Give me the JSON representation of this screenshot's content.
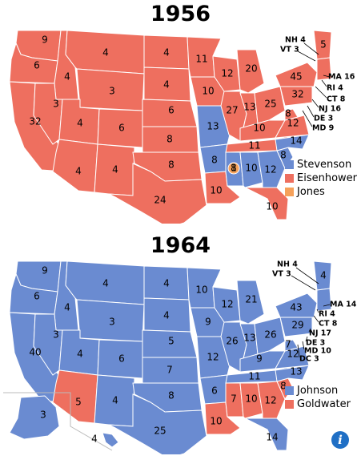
{
  "colors": {
    "dem": "#6a8bd1",
    "rep": "#ee6f5f",
    "other": "#f6a15a",
    "border": "#ffffff",
    "label_line": "#000000"
  },
  "map1956": {
    "title": "1956",
    "legend": [
      {
        "label": "Stevenson",
        "color": "#6a8bd1"
      },
      {
        "label": "Eisenhower",
        "color": "#ee6f5f"
      },
      {
        "label": "Jones",
        "color": "#f6a15a"
      }
    ],
    "states": {
      "WA": "9",
      "OR": "6",
      "CA": "32",
      "ID": "4",
      "NV": "3",
      "MT": "4",
      "WY": "3",
      "UT": "4",
      "AZ": "4",
      "CO": "6",
      "NM": "4",
      "ND": "4",
      "SD": "4",
      "NE": "6",
      "KS": "8",
      "OK": "8",
      "TX": "24",
      "MN": "11",
      "IA": "10",
      "MO": "13",
      "AR": "8",
      "LA": "10",
      "WI": "12",
      "IL": "27",
      "MI": "20",
      "IN": "13",
      "OH": "25",
      "KY": "10",
      "TN": "11",
      "MS": "8",
      "AL": "10",
      "AL_JONES": "1",
      "GA": "12",
      "FL": "10",
      "SC": "8",
      "NC": "14",
      "VA": "12",
      "WV": "8",
      "PA": "32",
      "NY": "45",
      "ME": "5",
      "NH": "NH 4",
      "VT": "VT 3",
      "MA": "MA 16",
      "RI": "RI 4",
      "CT": "CT 8",
      "NJ": "NJ 16",
      "DE": "DE 3",
      "MD": "MD 9"
    }
  },
  "map1964": {
    "title": "1964",
    "legend": [
      {
        "label": "Johnson",
        "color": "#6a8bd1"
      },
      {
        "label": "Goldwater",
        "color": "#ee6f5f"
      }
    ],
    "states": {
      "WA": "9",
      "OR": "6",
      "CA": "40",
      "ID": "4",
      "NV": "3",
      "MT": "4",
      "WY": "3",
      "UT": "4",
      "AZ": "5",
      "CO": "6",
      "NM": "4",
      "ND": "4",
      "SD": "4",
      "NE": "5",
      "KS": "7",
      "OK": "8",
      "TX": "25",
      "MN": "10",
      "IA": "9",
      "MO": "12",
      "AR": "6",
      "LA": "10",
      "WI": "12",
      "IL": "26",
      "MI": "21",
      "IN": "13",
      "OH": "26",
      "KY": "9",
      "TN": "11",
      "MS": "7",
      "AL": "10",
      "GA": "12",
      "FL": "14",
      "SC": "8",
      "NC": "13",
      "VA": "12",
      "WV": "7",
      "PA": "29",
      "NY": "43",
      "ME": "4",
      "AK": "3",
      "HI": "4",
      "NH": "NH 4",
      "VT": "VT 3",
      "MA": "MA 14",
      "RI": "RI 4",
      "CT": "CT 8",
      "NJ": "NJ 17",
      "DE": "DE 3",
      "MD": "MD 10",
      "DC": "DC 3"
    }
  },
  "info_icon": "info-icon",
  "info_label": "i"
}
